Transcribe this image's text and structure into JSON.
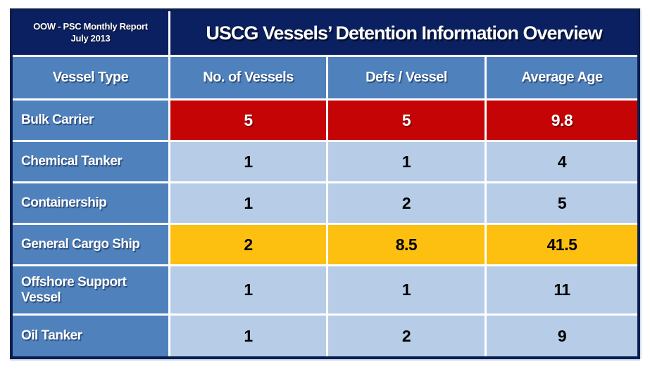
{
  "report": {
    "line1": "OOW - PSC Monthly Report",
    "line2": "July 2013"
  },
  "colors": {
    "navy_band": "#0a2060",
    "table_border": "#0c1e4f",
    "header_blue": "#4f81bd",
    "row_light_blue": "#b7cce6",
    "highlight_red": "#c50505",
    "highlight_amber": "#fdbf10",
    "gridline_white": "#ffffff",
    "text_white": "#ffffff",
    "text_black": "#000000"
  },
  "chart_data": {
    "type": "table",
    "title": "USCG Vessels’ Detention Information Overview",
    "subtitle": "OOW - PSC Monthly Report July 2013",
    "columns": [
      "Vessel Type",
      "No. of Vessels",
      "Defs / Vessel",
      "Average Age"
    ],
    "rows": [
      {
        "label": "Bulk Carrier",
        "values": [
          "5",
          "5",
          "9.8"
        ],
        "highlight": "red"
      },
      {
        "label": "Chemical Tanker",
        "values": [
          "1",
          "1",
          "4"
        ],
        "highlight": "none"
      },
      {
        "label": "Containership",
        "values": [
          "1",
          "2",
          "5"
        ],
        "highlight": "none"
      },
      {
        "label": "General Cargo Ship",
        "values": [
          "2",
          "8.5",
          "41.5"
        ],
        "highlight": "amber"
      },
      {
        "label": "Offshore Support Vessel",
        "values": [
          "1",
          "1",
          "11"
        ],
        "highlight": "none"
      },
      {
        "label": "Oil Tanker",
        "values": [
          "1",
          "2",
          "9"
        ],
        "highlight": "none"
      }
    ],
    "legend": "none",
    "grid": "white gridlines on colored cells"
  }
}
